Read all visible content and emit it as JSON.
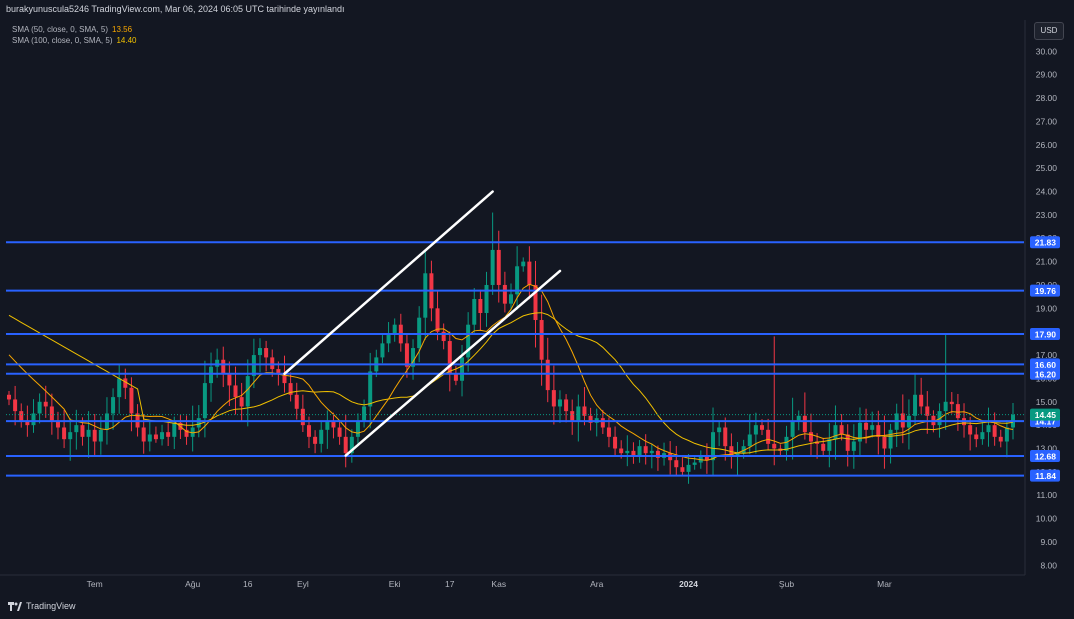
{
  "header": {
    "published": "burakyunuscula5246 TradingView.com, Mar 06, 2024 06:05 UTC tarihinde yayınlandı"
  },
  "indicators": [
    {
      "label": "SMA (50, close, 0, SMA, 5)",
      "value": "13.56",
      "color": "#f7a600"
    },
    {
      "label": "SMA (100, close, 0, SMA, 5)",
      "value": "14.40",
      "color": "#f0c000"
    }
  ],
  "currency": "USD",
  "footer": {
    "brand": "TradingView"
  },
  "colors": {
    "up": "#089981",
    "down": "#f23645",
    "level": "#2962ff",
    "background": "#131722"
  },
  "chart_data": {
    "type": "candlestick",
    "y_ticks": [
      "30.00",
      "29.00",
      "28.00",
      "27.00",
      "26.00",
      "25.00",
      "24.00",
      "23.00",
      "22.00",
      "21.00",
      "20.00",
      "19.00",
      "18.00",
      "17.00",
      "16.00",
      "15.00",
      "14.00",
      "13.00",
      "12.00",
      "11.00",
      "10.00",
      "9.00",
      "8.00"
    ],
    "ylim": [
      7.8,
      30.4
    ],
    "x_ticks": [
      {
        "label": "Tem",
        "i": 14,
        "bold": false
      },
      {
        "label": "Ağu",
        "i": 30,
        "bold": false
      },
      {
        "label": "16",
        "i": 39,
        "bold": false
      },
      {
        "label": "Eyl",
        "i": 48,
        "bold": false
      },
      {
        "label": "Eki",
        "i": 63,
        "bold": false
      },
      {
        "label": "17",
        "i": 72,
        "bold": false
      },
      {
        "label": "Kas",
        "i": 80,
        "bold": false
      },
      {
        "label": "Ara",
        "i": 96,
        "bold": false
      },
      {
        "label": "2024",
        "i": 111,
        "bold": true
      },
      {
        "label": "Şub",
        "i": 127,
        "bold": false
      },
      {
        "label": "Mar",
        "i": 143,
        "bold": false
      }
    ],
    "levels": [
      {
        "value": 21.83,
        "label": "21.83"
      },
      {
        "value": 19.76,
        "label": "19.76"
      },
      {
        "value": 17.9,
        "label": "17.90"
      },
      {
        "value": 16.6,
        "label": "16.60"
      },
      {
        "value": 16.2,
        "label": "16.20"
      },
      {
        "value": 14.17,
        "label": "14.17"
      },
      {
        "value": 12.68,
        "label": "12.68"
      },
      {
        "value": 11.84,
        "label": "11.84"
      }
    ],
    "last_price": {
      "value": 14.45,
      "label": "14.45"
    },
    "trendlines": [
      {
        "i1": 45,
        "v1": 16.2,
        "i2": 79,
        "v2": 24.0
      },
      {
        "i1": 55,
        "v1": 12.7,
        "i2": 90,
        "v2": 20.6
      }
    ],
    "closes": [
      15.1,
      14.6,
      14.2,
      14.0,
      14.5,
      15.0,
      14.8,
      14.2,
      13.9,
      13.4,
      13.7,
      14.0,
      13.5,
      13.8,
      13.3,
      13.8,
      14.5,
      15.2,
      16.0,
      15.6,
      14.5,
      13.9,
      13.3,
      13.6,
      13.4,
      13.7,
      13.5,
      14.1,
      13.8,
      13.5,
      13.9,
      14.3,
      15.8,
      16.5,
      16.8,
      16.2,
      15.7,
      15.2,
      14.8,
      16.1,
      17.0,
      17.3,
      16.9,
      16.4,
      16.2,
      15.8,
      15.3,
      14.7,
      14.0,
      13.5,
      13.2,
      13.8,
      14.2,
      13.9,
      13.5,
      12.8,
      13.5,
      14.2,
      14.8,
      16.3,
      16.9,
      17.5,
      17.9,
      18.3,
      17.5,
      16.5,
      17.3,
      18.6,
      20.5,
      19.0,
      18.0,
      17.6,
      16.2,
      15.9,
      16.9,
      18.3,
      19.4,
      18.8,
      20.0,
      21.5,
      20.0,
      19.2,
      19.6,
      20.8,
      21.0,
      20.0,
      18.5,
      16.8,
      15.5,
      14.8,
      15.1,
      14.6,
      14.2,
      14.8,
      14.4,
      14.1,
      14.3,
      13.9,
      13.5,
      13.0,
      12.8,
      12.9,
      12.7,
      13.1,
      12.8,
      12.9,
      12.6,
      12.8,
      12.5,
      12.2,
      12.0,
      12.3,
      12.4,
      12.7,
      12.5,
      13.7,
      13.9,
      13.1,
      12.7,
      12.8,
      13.1,
      13.6,
      14.0,
      13.8,
      13.2,
      13.0,
      12.9,
      13.5,
      14.2,
      14.4,
      13.7,
      13.3,
      13.2,
      12.9,
      13.4,
      14.0,
      13.6,
      12.9,
      13.3,
      14.1,
      13.8,
      14.0,
      13.5,
      13.0,
      13.8,
      14.5,
      13.9,
      14.4,
      15.3,
      14.8,
      14.4,
      14.0,
      14.6,
      15.0,
      14.9,
      14.3,
      14.0,
      13.6,
      13.4,
      13.7,
      14.0,
      13.5,
      13.3,
      13.9,
      14.45
    ]
  }
}
